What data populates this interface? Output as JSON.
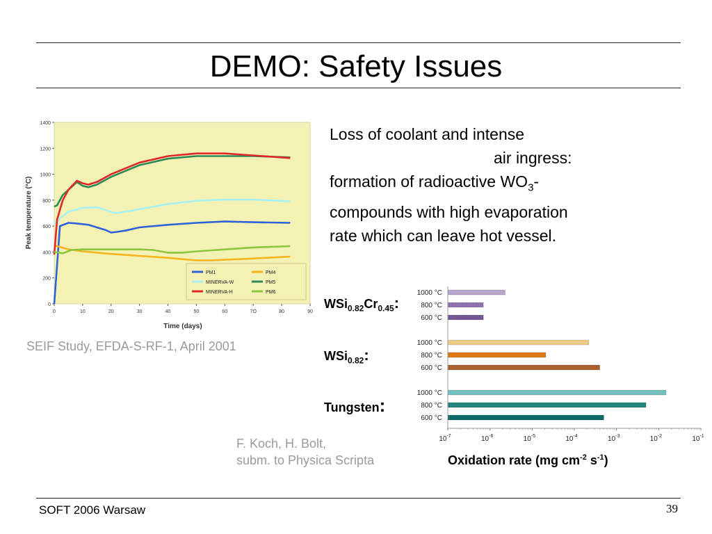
{
  "slide": {
    "title": "DEMO: Safety Issues",
    "description": {
      "line1": "Loss of coolant and intense",
      "line2": "air ingress:",
      "line3_pre": "formation of radioactive WO",
      "line3_sub": "3",
      "line3_post": "-",
      "line4": "compounds with high evaporation",
      "line5": "rate which can leave hot vessel."
    },
    "caption_left": "SEIF Study, EFDA-S-RF-1, April 2001",
    "credit": {
      "line1": "F. Koch, H. Bolt,",
      "line2": "subm. to Physica Scripta"
    },
    "footer": {
      "left": "SOFT 2006 Warsaw",
      "page": "39"
    }
  },
  "chart_data": [
    {
      "type": "line",
      "xlabel": "Time (days)",
      "ylabel": "Peak temperature (°C)",
      "xlim": [
        0,
        90
      ],
      "ylim": [
        0,
        1400
      ],
      "xticks": [
        "0",
        "10",
        "20",
        "30",
        "40",
        "50",
        "60",
        "7O",
        "80",
        "90"
      ],
      "yticks": [
        "0",
        "200",
        "400",
        "600",
        "800",
        "1000",
        "1200",
        "1400"
      ],
      "background": "#f4f1b4",
      "legend_position": "bottom-right",
      "series": [
        {
          "name": "PM1",
          "color": "#2f62d8",
          "x": [
            0,
            2,
            5,
            8,
            12,
            18,
            20,
            22,
            25,
            30,
            40,
            50,
            60,
            70,
            83
          ],
          "y": [
            0,
            600,
            625,
            620,
            610,
            570,
            550,
            555,
            565,
            590,
            610,
            625,
            635,
            630,
            625
          ]
        },
        {
          "name": "PM4",
          "color": "#f3b41e",
          "x": [
            0,
            2,
            5,
            10,
            20,
            30,
            40,
            50,
            55,
            60,
            70,
            83
          ],
          "y": [
            450,
            440,
            420,
            405,
            385,
            370,
            355,
            335,
            335,
            340,
            350,
            365
          ]
        },
        {
          "name": "MINERVA-W",
          "color": "#a8f2f4",
          "x": [
            0,
            2,
            5,
            10,
            15,
            20,
            22,
            30,
            40,
            50,
            60,
            70,
            83
          ],
          "y": [
            620,
            660,
            710,
            740,
            745,
            710,
            700,
            730,
            770,
            795,
            805,
            805,
            790
          ]
        },
        {
          "name": "PM5",
          "color": "#2d8a5a",
          "x": [
            0,
            1,
            3,
            5,
            8,
            10,
            12,
            15,
            20,
            30,
            40,
            50,
            60,
            70,
            83
          ],
          "y": [
            750,
            760,
            840,
            880,
            940,
            910,
            900,
            920,
            980,
            1070,
            1120,
            1140,
            1140,
            1140,
            1130
          ]
        },
        {
          "name": "MINERVA-H",
          "color": "#e02828",
          "x": [
            0,
            1,
            3,
            5,
            8,
            10,
            12,
            15,
            20,
            30,
            40,
            50,
            60,
            70,
            83
          ],
          "y": [
            380,
            650,
            800,
            880,
            950,
            930,
            920,
            940,
            1000,
            1090,
            1140,
            1160,
            1160,
            1145,
            1125
          ]
        },
        {
          "name": "PM6",
          "color": "#8cc63c",
          "x": [
            0,
            3,
            6,
            10,
            20,
            30,
            35,
            40,
            45,
            50,
            60,
            70,
            83
          ],
          "y": [
            400,
            390,
            415,
            420,
            420,
            420,
            415,
            395,
            395,
            405,
            420,
            435,
            445
          ]
        }
      ]
    },
    {
      "type": "bar",
      "orientation": "horizontal",
      "xscale": "log",
      "xlabel_pre": "Oxidation rate (mg cm",
      "xlabel_sup1": "-2",
      "xlabel_mid": " s",
      "xlabel_sup2": "-1",
      "xlabel_post": ")",
      "xlim": [
        1e-07,
        0.1
      ],
      "xticks": [
        {
          "base": "10",
          "exp": "-7"
        },
        {
          "base": "10",
          "exp": "-6"
        },
        {
          "base": "10",
          "exp": "-5"
        },
        {
          "base": "10",
          "exp": "-4"
        },
        {
          "base": "10",
          "exp": "-3"
        },
        {
          "base": "10",
          "exp": "-2"
        },
        {
          "base": "10",
          "exp": "-1"
        }
      ],
      "groups": [
        {
          "material": {
            "pre": "WSi",
            "sub1": "0.82",
            "mid": "Cr",
            "sub2": "0.45",
            "post": ":"
          },
          "bars": [
            {
              "label": "1000 °C",
              "value": 2.3e-06,
              "color": "#b6a6cc"
            },
            {
              "label": "800 °C",
              "value": 7e-07,
              "color": "#7a5a9e",
              "pattern": "faded"
            },
            {
              "label": "600 °C",
              "value": 7e-07,
              "color": "#5a3a7e",
              "pattern": "faded"
            }
          ]
        },
        {
          "material": {
            "pre": "WSi",
            "sub1": "0.82",
            "post": ":"
          },
          "bars": [
            {
              "label": "1000 °C",
              "value": 0.00022,
              "color": "#eccb8a"
            },
            {
              "label": "800 °C",
              "value": 2.1e-05,
              "color": "#de7a12"
            },
            {
              "label": "600 °C",
              "value": 0.0004,
              "color": "#a8602c"
            }
          ]
        },
        {
          "material": {
            "pre": "Tungsten",
            "post": ":"
          },
          "bars": [
            {
              "label": "1000 °C",
              "value": 0.015,
              "color": "#76bfbf"
            },
            {
              "label": "800 °C",
              "value": 0.005,
              "color": "#238480"
            },
            {
              "label": "600 °C",
              "value": 0.0005,
              "color": "#0d6a64"
            }
          ]
        }
      ]
    }
  ]
}
